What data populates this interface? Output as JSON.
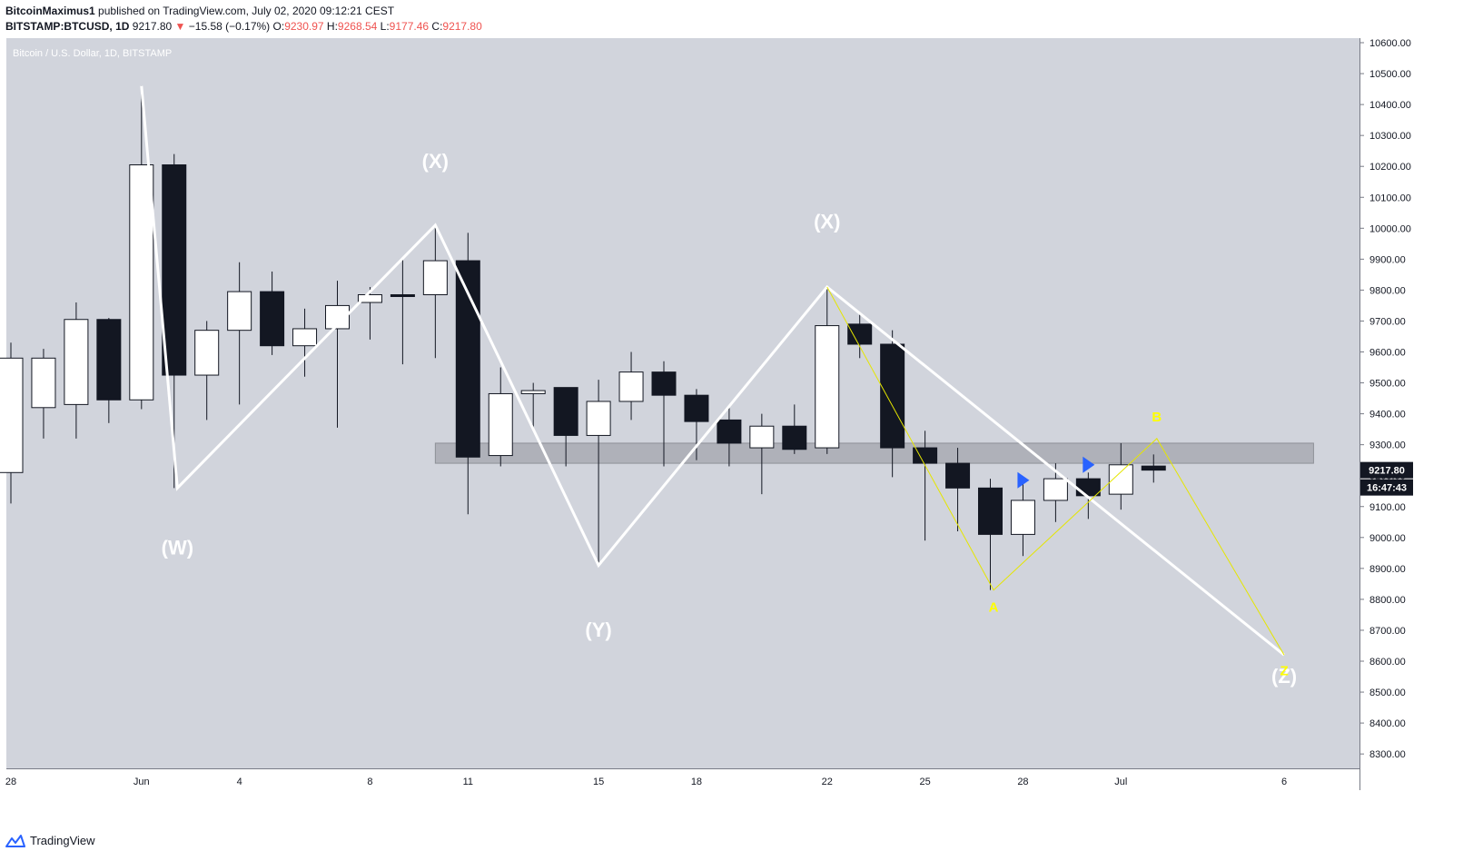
{
  "header": {
    "author": "BitcoinMaximus1",
    "published_text": "published on TradingView.com, July 02, 2020 09:12:21 CEST",
    "symbol": "BITSTAMP:BTCUSD, 1D",
    "last": "9217.80",
    "change_arrow": "▼",
    "change": "−15.58 (−0.17%)",
    "o_label": "O:",
    "o": "9230.97",
    "h_label": "H:",
    "h": "9268.54",
    "l_label": "L:",
    "l": "9177.46",
    "c_label": "C:",
    "c": "9217.80"
  },
  "footer": {
    "brand": "TradingView",
    "logo_icon": "tradingview-logo-icon"
  },
  "chart_data": {
    "type": "candlestick",
    "title": "Bitcoin / U.S. Dollar, 1D, BITSTAMP",
    "ylim": [
      8220,
      10660
    ],
    "y_ticks": [
      "10600.00",
      "10500.00",
      "10400.00",
      "10300.00",
      "10200.00",
      "10100.00",
      "10000.00",
      "9900.00",
      "9800.00",
      "9700.00",
      "9600.00",
      "9500.00",
      "9400.00",
      "9300.00",
      "9200.00",
      "9100.00",
      "9000.00",
      "8900.00",
      "8800.00",
      "8700.00",
      "8600.00",
      "8500.00",
      "8400.00",
      "8300.00"
    ],
    "y_tick_values": [
      10600,
      10500,
      10400,
      10300,
      10200,
      10100,
      10000,
      9900,
      9800,
      9700,
      9600,
      9500,
      9400,
      9300,
      9200,
      9100,
      9000,
      8900,
      8800,
      8700,
      8600,
      8500,
      8400,
      8300
    ],
    "x_ticks": [
      {
        "label": "28",
        "index": 0
      },
      {
        "label": "Jun",
        "index": 4
      },
      {
        "label": "4",
        "index": 7
      },
      {
        "label": "8",
        "index": 11
      },
      {
        "label": "11",
        "index": 14
      },
      {
        "label": "15",
        "index": 18
      },
      {
        "label": "18",
        "index": 21
      },
      {
        "label": "22",
        "index": 25
      },
      {
        "label": "25",
        "index": 28
      },
      {
        "label": "28",
        "index": 31
      },
      {
        "label": "Jul",
        "index": 34
      },
      {
        "label": "6",
        "index": 39
      }
    ],
    "candles": [
      {
        "o": 9210,
        "h": 9630,
        "l": 9110,
        "c": 9580
      },
      {
        "o": 9420,
        "h": 9610,
        "l": 9320,
        "c": 9580
      },
      {
        "o": 9430,
        "h": 9760,
        "l": 9320,
        "c": 9705
      },
      {
        "o": 9705,
        "h": 9710,
        "l": 9370,
        "c": 9445
      },
      {
        "o": 9445,
        "h": 10460,
        "l": 9415,
        "c": 10205
      },
      {
        "o": 10205,
        "h": 10240,
        "l": 9160,
        "c": 9525
      },
      {
        "o": 9525,
        "h": 9700,
        "l": 9380,
        "c": 9670
      },
      {
        "o": 9670,
        "h": 9890,
        "l": 9430,
        "c": 9795
      },
      {
        "o": 9795,
        "h": 9860,
        "l": 9590,
        "c": 9620
      },
      {
        "o": 9620,
        "h": 9740,
        "l": 9520,
        "c": 9675
      },
      {
        "o": 9675,
        "h": 9830,
        "l": 9355,
        "c": 9750
      },
      {
        "o": 9760,
        "h": 9810,
        "l": 9640,
        "c": 9785
      },
      {
        "o": 9785,
        "h": 9900,
        "l": 9560,
        "c": 9780
      },
      {
        "o": 9785,
        "h": 10010,
        "l": 9580,
        "c": 9895
      },
      {
        "o": 9895,
        "h": 9985,
        "l": 9075,
        "c": 9260
      },
      {
        "o": 9265,
        "h": 9550,
        "l": 9230,
        "c": 9465
      },
      {
        "o": 9465,
        "h": 9500,
        "l": 9350,
        "c": 9475
      },
      {
        "o": 9485,
        "h": 9485,
        "l": 9230,
        "c": 9330
      },
      {
        "o": 9330,
        "h": 9510,
        "l": 8910,
        "c": 9440
      },
      {
        "o": 9440,
        "h": 9600,
        "l": 9380,
        "c": 9535
      },
      {
        "o": 9535,
        "h": 9570,
        "l": 9230,
        "c": 9460
      },
      {
        "o": 9460,
        "h": 9480,
        "l": 9250,
        "c": 9375
      },
      {
        "o": 9380,
        "h": 9420,
        "l": 9230,
        "c": 9305
      },
      {
        "o": 9290,
        "h": 9400,
        "l": 9140,
        "c": 9360
      },
      {
        "o": 9360,
        "h": 9430,
        "l": 9270,
        "c": 9285
      },
      {
        "o": 9290,
        "h": 9810,
        "l": 9270,
        "c": 9685
      },
      {
        "o": 9690,
        "h": 9725,
        "l": 9580,
        "c": 9625
      },
      {
        "o": 9625,
        "h": 9670,
        "l": 9195,
        "c": 9290
      },
      {
        "o": 9290,
        "h": 9345,
        "l": 8990,
        "c": 9240
      },
      {
        "o": 9240,
        "h": 9290,
        "l": 9020,
        "c": 9160
      },
      {
        "o": 9160,
        "h": 9190,
        "l": 8830,
        "c": 9010
      },
      {
        "o": 9010,
        "h": 9190,
        "l": 8940,
        "c": 9120
      },
      {
        "o": 9120,
        "h": 9240,
        "l": 9050,
        "c": 9190
      },
      {
        "o": 9190,
        "h": 9210,
        "l": 9060,
        "c": 9135
      },
      {
        "o": 9140,
        "h": 9305,
        "l": 9090,
        "c": 9235
      },
      {
        "o": 9230.97,
        "h": 9268.54,
        "l": 9177.46,
        "c": 9217.8
      }
    ],
    "white_path": [
      {
        "i": 4,
        "v": 10460
      },
      {
        "i": 5.1,
        "v": 9160
      },
      {
        "i": 13,
        "v": 10010
      },
      {
        "i": 18,
        "v": 8910
      },
      {
        "i": 25,
        "v": 9810
      },
      {
        "i": 39,
        "v": 8620
      }
    ],
    "yellow_path": [
      {
        "i": 25,
        "v": 9810
      },
      {
        "i": 30.1,
        "v": 8830
      },
      {
        "i": 35.1,
        "v": 9320
      },
      {
        "i": 39,
        "v": 8620
      }
    ],
    "zone": {
      "i_start": 13,
      "i_end": 39.9,
      "v_low": 9240,
      "v_high": 9305
    },
    "white_labels": [
      {
        "text": "(W)",
        "i": 5.1,
        "v": 8945
      },
      {
        "text": "(X)",
        "i": 13,
        "v": 10195
      },
      {
        "text": "(Y)",
        "i": 18,
        "v": 8680
      },
      {
        "text": "(X)",
        "i": 25,
        "v": 10000
      },
      {
        "text": "(Z)",
        "i": 39,
        "v": 8530
      }
    ],
    "yellow_labels": [
      {
        "text": "A",
        "i": 30.1,
        "v": 8760
      },
      {
        "text": "B",
        "i": 35.1,
        "v": 9375
      },
      {
        "text": "Z",
        "i": 39,
        "v": 8555
      }
    ],
    "arrows": [
      {
        "i": 31,
        "v": 9185
      },
      {
        "i": 33,
        "v": 9235
      }
    ],
    "last_price_label": "9217.80",
    "countdown_label": "16:47:43",
    "colors": {
      "background": "#d1d4dc",
      "bull": "#ffffff",
      "bear": "#131722",
      "wave": "#ffffff",
      "yellow": "#ffff00",
      "arrow": "#2962ff",
      "zone": "#a3a6ae"
    }
  }
}
